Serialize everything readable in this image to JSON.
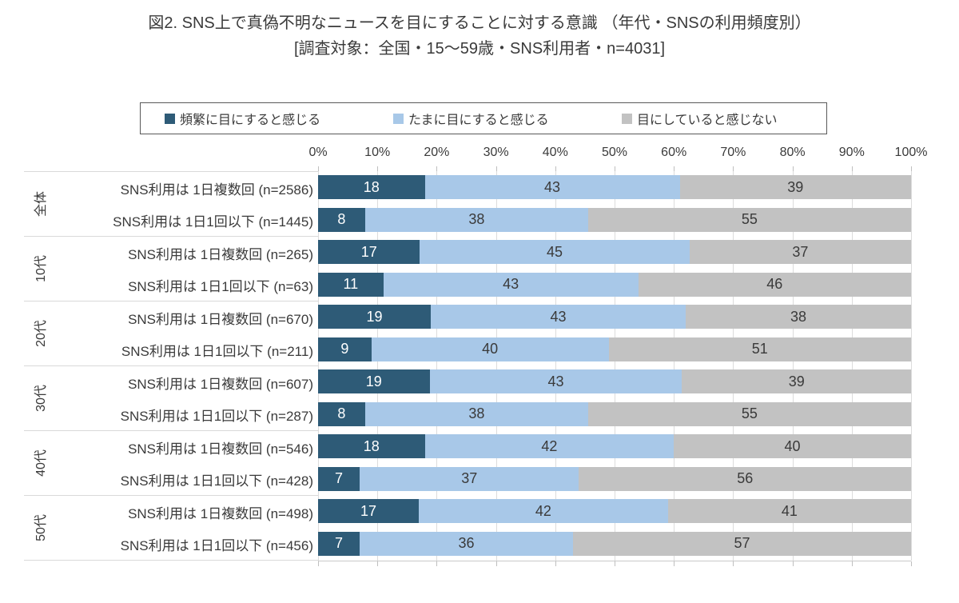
{
  "header": {
    "title": "図2. SNS上で真偽不明なニュースを目にすることに対する意識 （年代・SNSの利用頻度別）",
    "subtitle": "[調査対象：全国・15～59歳・SNS利用者・n=4031]"
  },
  "legend": {
    "items": [
      {
        "label": "頻繁に目にすると感じる",
        "color": "#2e5b77"
      },
      {
        "label": "たまに目にすると感じる",
        "color": "#a8c8e8"
      },
      {
        "label": "目にしていると感じない",
        "color": "#c2c2c2"
      }
    ]
  },
  "chart_data": {
    "type": "bar",
    "orientation": "horizontal",
    "stacked": true,
    "units": "%",
    "xlim": [
      0,
      100
    ],
    "x_ticks": [
      "0%",
      "10%",
      "20%",
      "30%",
      "40%",
      "50%",
      "60%",
      "70%",
      "80%",
      "90%",
      "100%"
    ],
    "grid": true,
    "legend_position": "top",
    "series_names": [
      "頻繁に目にすると感じる",
      "たまに目にすると感じる",
      "目にしていると感じない"
    ],
    "colors": [
      "#2e5b77",
      "#a8c8e8",
      "#c2c2c2"
    ],
    "groups": [
      {
        "group": "全体",
        "rows": [
          {
            "label": "SNS利用は 1日複数回  (n=2586)",
            "values": [
              18,
              43,
              39
            ]
          },
          {
            "label": "SNS利用は 1日1回以下 (n=1445)",
            "values": [
              8,
              38,
              55
            ]
          }
        ]
      },
      {
        "group": "10代",
        "rows": [
          {
            "label": "SNS利用は 1日複数回  (n=265)",
            "values": [
              17,
              45,
              37
            ]
          },
          {
            "label": "SNS利用は 1日1回以下 (n=63)",
            "values": [
              11,
              43,
              46
            ]
          }
        ]
      },
      {
        "group": "20代",
        "rows": [
          {
            "label": "SNS利用は 1日複数回  (n=670)",
            "values": [
              19,
              43,
              38
            ]
          },
          {
            "label": "SNS利用は 1日1回以下 (n=211)",
            "values": [
              9,
              40,
              51
            ]
          }
        ]
      },
      {
        "group": "30代",
        "rows": [
          {
            "label": "SNS利用は 1日複数回  (n=607)",
            "values": [
              19,
              43,
              39
            ]
          },
          {
            "label": "SNS利用は 1日1回以下 (n=287)",
            "values": [
              8,
              38,
              55
            ]
          }
        ]
      },
      {
        "group": "40代",
        "rows": [
          {
            "label": "SNS利用は 1日複数回  (n=546)",
            "values": [
              18,
              42,
              40
            ]
          },
          {
            "label": "SNS利用は 1日1回以下 (n=428)",
            "values": [
              7,
              37,
              56
            ]
          }
        ]
      },
      {
        "group": "50代",
        "rows": [
          {
            "label": "SNS利用は 1日複数回  (n=498)",
            "values": [
              17,
              42,
              41
            ]
          },
          {
            "label": "SNS利用は 1日1回以下 (n=456)",
            "values": [
              7,
              36,
              57
            ]
          }
        ]
      }
    ]
  }
}
